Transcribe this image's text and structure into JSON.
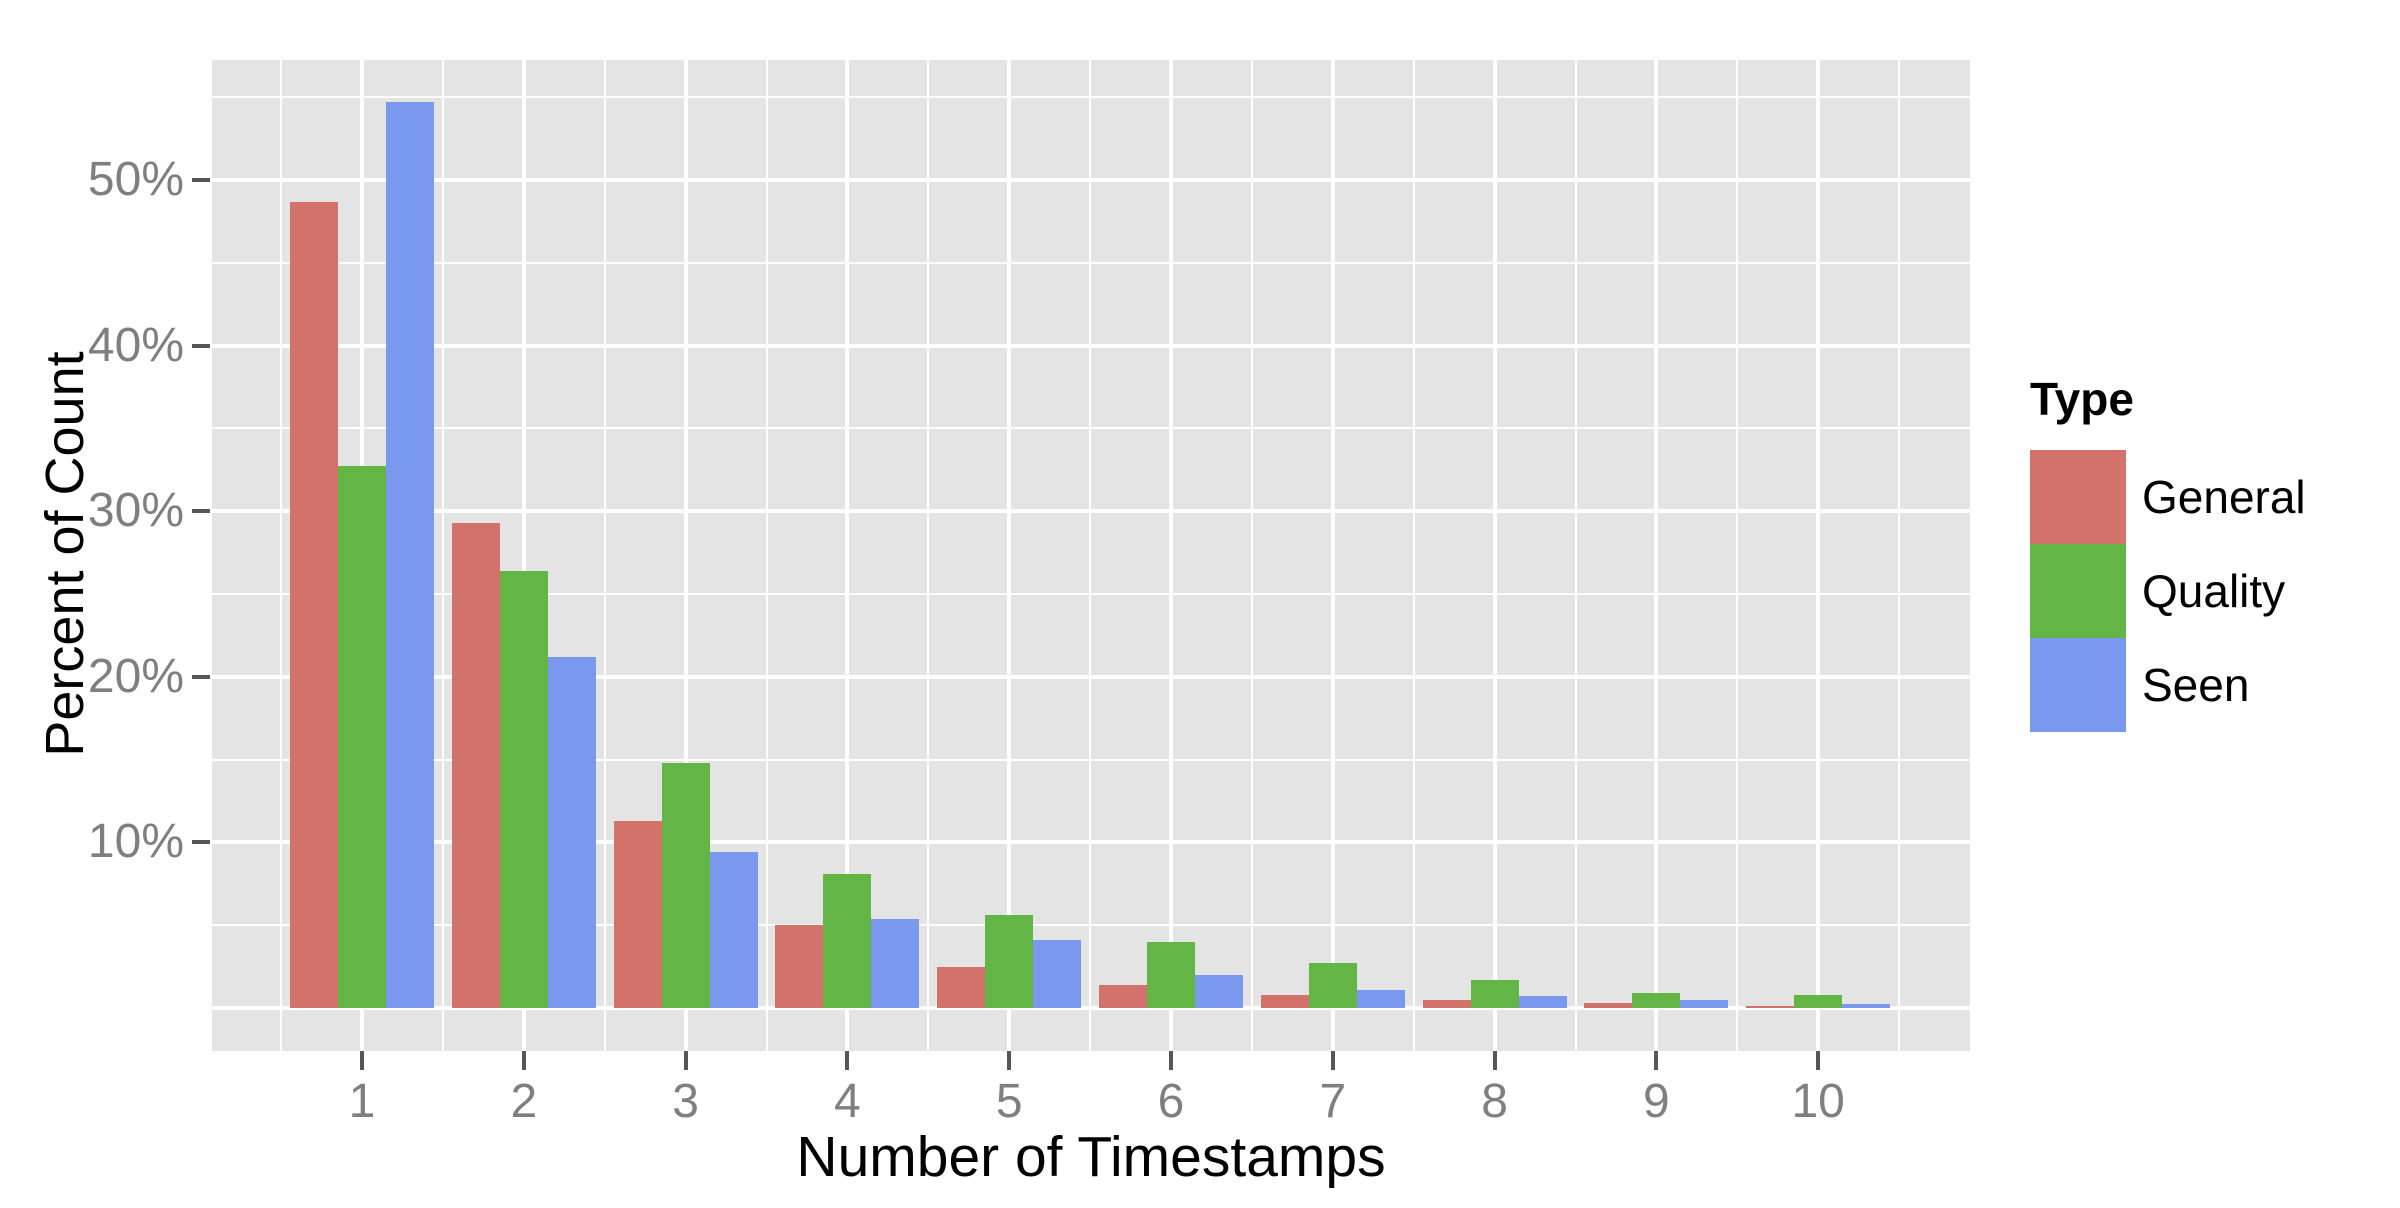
{
  "chart_data": {
    "type": "bar",
    "title": "",
    "xlabel": "Number of Timestamps",
    "ylabel": "Percent of Count",
    "categories": [
      "1",
      "2",
      "3",
      "4",
      "5",
      "6",
      "7",
      "8",
      "9",
      "10"
    ],
    "series": [
      {
        "name": "General",
        "color": "#D3716B",
        "values": [
          48.7,
          29.3,
          11.3,
          5.0,
          2.5,
          1.4,
          0.8,
          0.5,
          0.3,
          0.15
        ]
      },
      {
        "name": "Quality",
        "color": "#63B546",
        "values": [
          32.7,
          26.4,
          14.8,
          8.1,
          5.6,
          4.0,
          2.7,
          1.7,
          0.9,
          0.8
        ]
      },
      {
        "name": "Seen",
        "color": "#7B98EF",
        "values": [
          54.7,
          21.2,
          9.4,
          5.4,
          4.1,
          2.0,
          1.1,
          0.7,
          0.5,
          0.25
        ]
      }
    ],
    "y_axis": {
      "breaks": [
        10,
        20,
        30,
        40,
        50
      ],
      "labels": [
        "10%",
        "20%",
        "30%",
        "40%",
        "50%"
      ],
      "minor_breaks": [
        5,
        15,
        25,
        35,
        45,
        55
      ],
      "baseline_break": 0,
      "ylim": [
        0,
        57.5
      ]
    },
    "legend": {
      "title": "Type",
      "position": "right",
      "entries": [
        "General",
        "Quality",
        "Seen"
      ]
    },
    "grid": {
      "major": true,
      "minor": true,
      "grid_color": "#FFFFFF"
    },
    "style": {
      "panel_background": "#E4E4E4",
      "page_background": "#FFFFFF",
      "tick_color": "#565656",
      "tick_label_color": "#7F7F7F",
      "title_color": "#000000"
    }
  }
}
